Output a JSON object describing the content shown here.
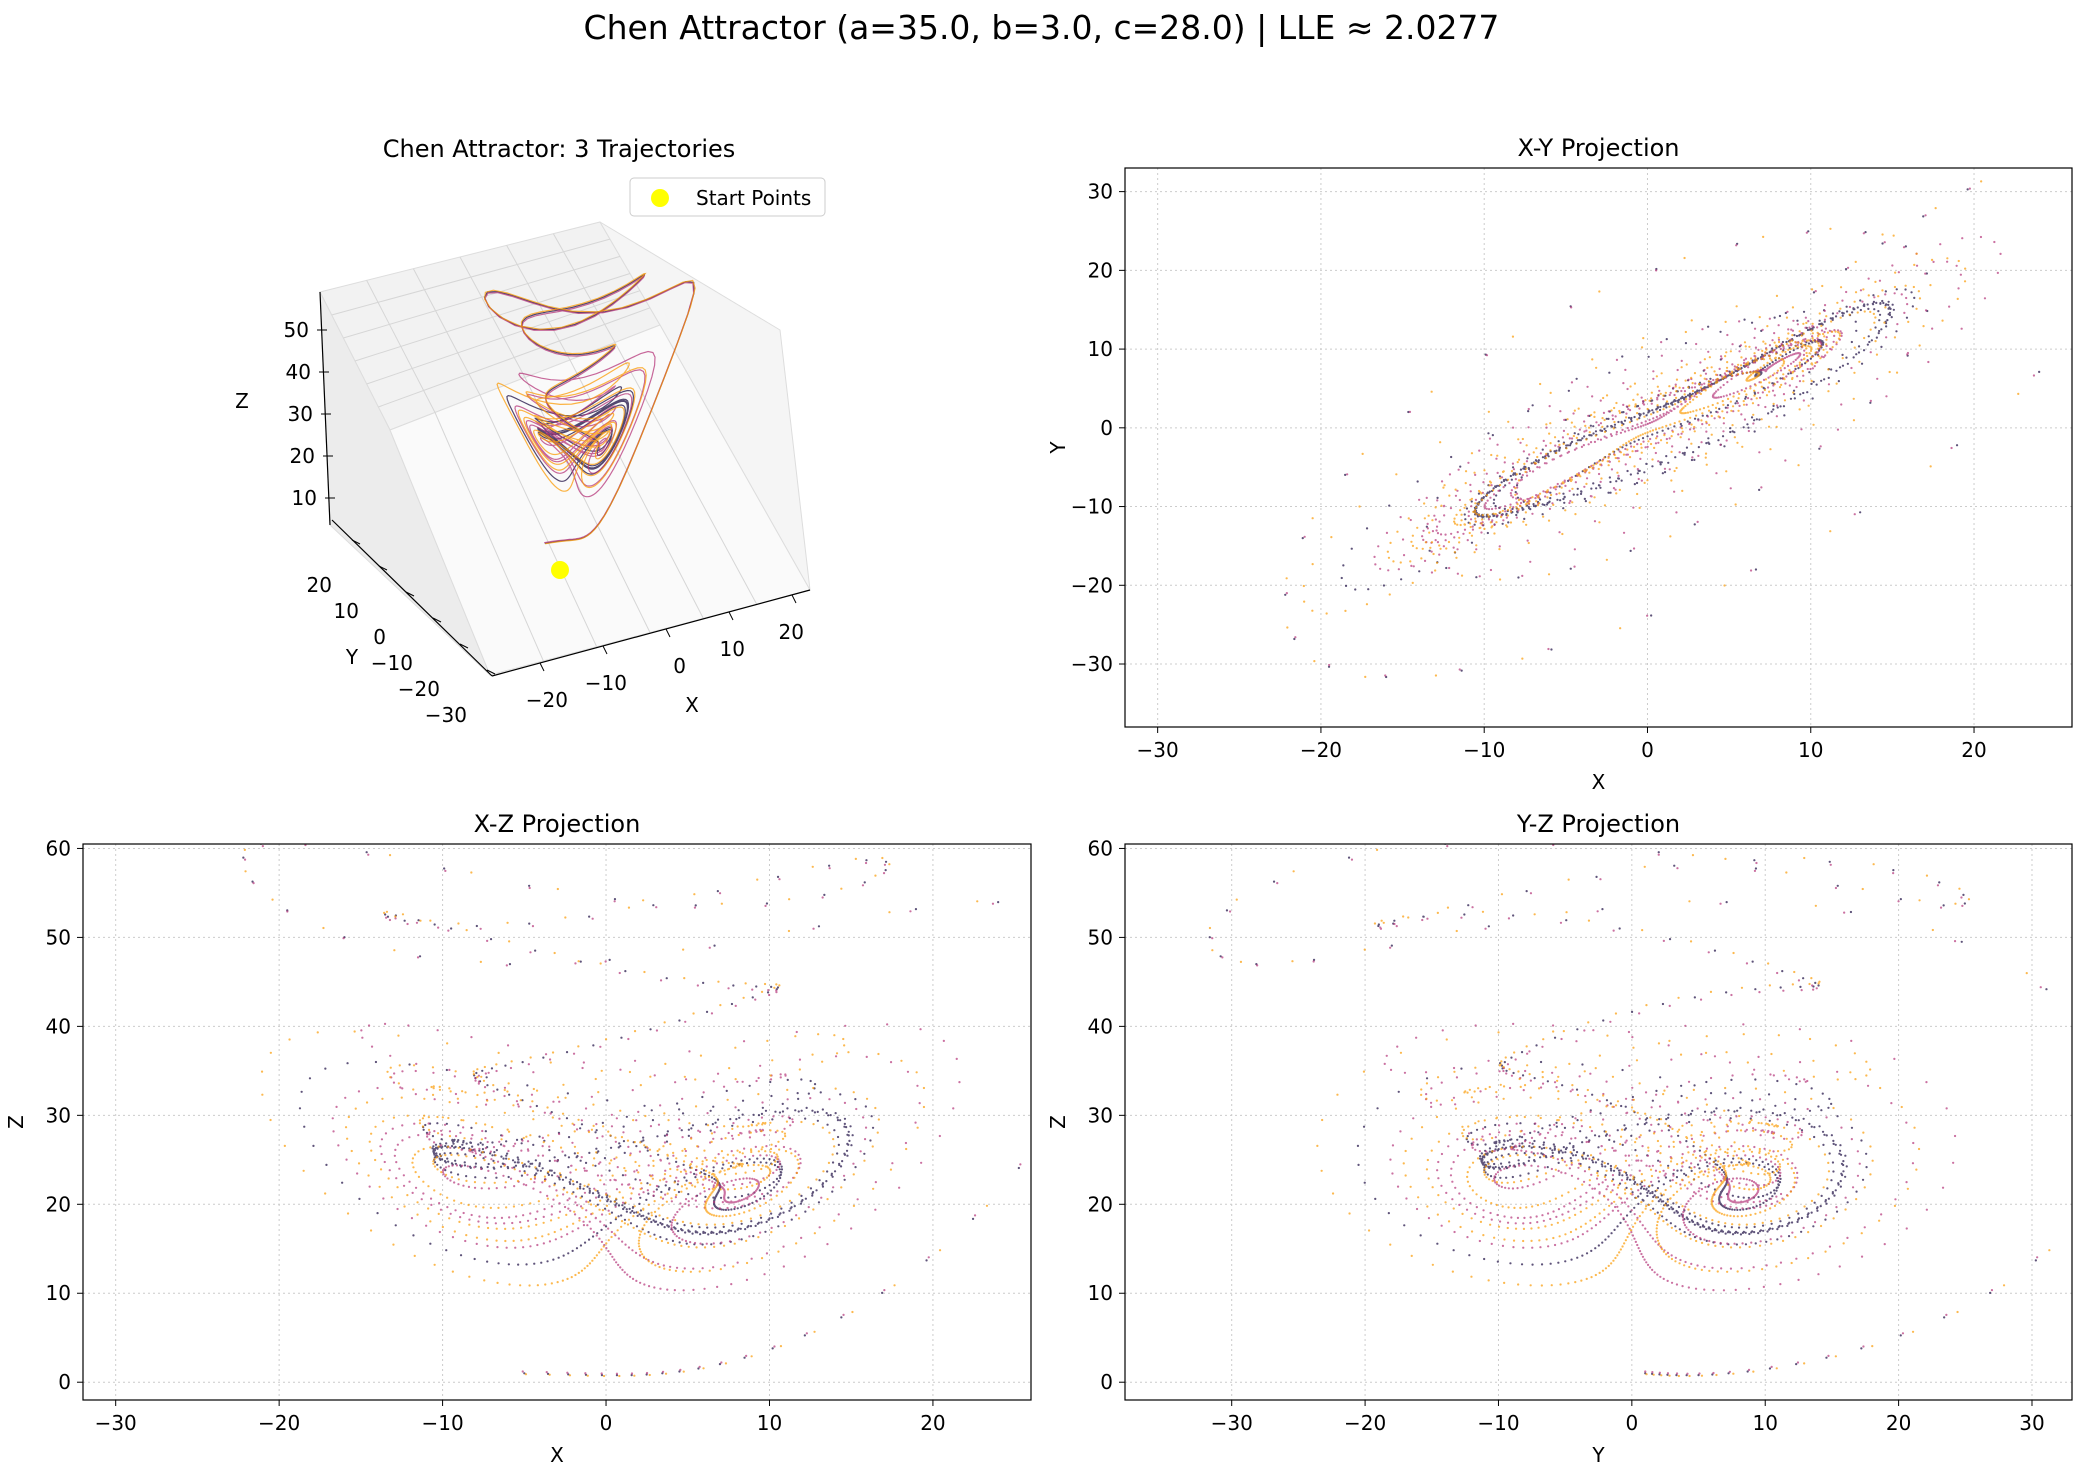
{
  "figure": {
    "suptitle": "Chen Attractor (a=35.0, b=3.0, c=28.0) | LLE ≈ 2.0277"
  },
  "colors": {
    "trajectory_1": "#1b0c41",
    "trajectory_2": "#b5367a",
    "trajectory_3": "#fb9b06",
    "start_point": "#ffff00",
    "grid": "#cccccc"
  },
  "chart_data": [
    {
      "type": "line-3d",
      "title": "Chen Attractor: 3 Trajectories",
      "xlabel": "X",
      "ylabel": "Y",
      "zlabel": "Z",
      "xticks": [
        "−20",
        "−10",
        "0",
        "10",
        "20"
      ],
      "yticks": [
        "20",
        "10",
        "0",
        "−10",
        "−20",
        "−30"
      ],
      "zticks": [
        "10",
        "20",
        "30",
        "40",
        "50"
      ],
      "legend": {
        "label": "Start Points",
        "placement": "top-right"
      },
      "series_count": 3
    },
    {
      "type": "scatter",
      "title": "X-Y Projection",
      "xlabel": "X",
      "ylabel": "Y",
      "xlim": [
        -32,
        26
      ],
      "ylim": [
        -38,
        33
      ],
      "xticks": [
        -30,
        -20,
        -10,
        0,
        10,
        20
      ],
      "yticks": [
        -30,
        -20,
        -10,
        0,
        10,
        20,
        30
      ],
      "grid": true
    },
    {
      "type": "scatter",
      "title": "X-Z Projection",
      "xlabel": "X",
      "ylabel": "Z",
      "xlim": [
        -32,
        26
      ],
      "ylim": [
        -2,
        60.5
      ],
      "xticks": [
        -30,
        -20,
        -10,
        0,
        10,
        20
      ],
      "yticks": [
        0,
        10,
        20,
        30,
        40,
        50,
        60
      ],
      "grid": true
    },
    {
      "type": "scatter",
      "title": "Y-Z Projection",
      "xlabel": "Y",
      "ylabel": "Z",
      "xlim": [
        -38,
        33
      ],
      "ylim": [
        -2,
        60.5
      ],
      "xticks": [
        -30,
        -20,
        -10,
        0,
        10,
        20,
        30
      ],
      "yticks": [
        0,
        10,
        20,
        30,
        40,
        50,
        60
      ],
      "grid": true
    }
  ]
}
